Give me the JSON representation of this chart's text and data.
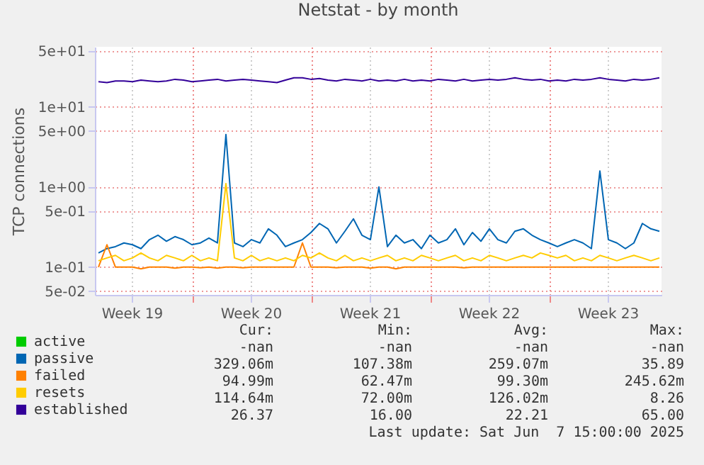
{
  "chart_data": {
    "type": "line",
    "title": "Netstat - by month",
    "ylabel": "TCP connections",
    "log": "y",
    "grid": true,
    "legend": "bottom",
    "line_style": "solid",
    "marker": "none",
    "xlim": [
      "2025-05-05T07:00",
      "2025-06-07T15:00"
    ],
    "xticks": [
      {
        "value": "2025-05-07T11:00",
        "label": "Week 19"
      },
      {
        "value": "2025-05-11T00:00",
        "label": null
      },
      {
        "value": "2025-05-14T11:00",
        "label": "Week 20"
      },
      {
        "value": "2025-05-18T00:00",
        "label": null
      },
      {
        "value": "2025-05-21T11:00",
        "label": "Week 21"
      },
      {
        "value": "2025-05-25T00:00",
        "label": null
      },
      {
        "value": "2025-05-28T11:00",
        "label": "Week 22"
      },
      {
        "value": "2025-06-01T00:00",
        "label": null
      },
      {
        "value": "2025-06-04T11:00",
        "label": "Week 23"
      }
    ],
    "ylim": [
      0.045,
      56
    ],
    "yticks": [
      {
        "value": 0.05,
        "label": "5e-02"
      },
      {
        "value": 0.1,
        "label": "1e-01"
      },
      {
        "value": 0.5,
        "label": "5e-01"
      },
      {
        "value": 1,
        "label": "1e+00"
      },
      {
        "value": 5,
        "label": "5e+00"
      },
      {
        "value": 10,
        "label": "1e+01"
      },
      {
        "value": 50,
        "label": "5e+01"
      }
    ],
    "x": [
      "2025-05-05T12:00",
      "2025-05-06T00:00",
      "2025-05-06T12:00",
      "2025-05-07T00:00",
      "2025-05-07T12:00",
      "2025-05-08T00:00",
      "2025-05-08T12:00",
      "2025-05-09T00:00",
      "2025-05-09T12:00",
      "2025-05-10T00:00",
      "2025-05-10T12:00",
      "2025-05-11T00:00",
      "2025-05-11T12:00",
      "2025-05-12T00:00",
      "2025-05-12T12:00",
      "2025-05-13T00:00",
      "2025-05-13T12:00",
      "2025-05-14T00:00",
      "2025-05-14T12:00",
      "2025-05-15T00:00",
      "2025-05-15T12:00",
      "2025-05-16T00:00",
      "2025-05-16T12:00",
      "2025-05-17T00:00",
      "2025-05-17T12:00",
      "2025-05-18T00:00",
      "2025-05-18T12:00",
      "2025-05-19T00:00",
      "2025-05-19T12:00",
      "2025-05-20T00:00",
      "2025-05-20T12:00",
      "2025-05-21T00:00",
      "2025-05-21T12:00",
      "2025-05-22T00:00",
      "2025-05-22T12:00",
      "2025-05-23T00:00",
      "2025-05-23T12:00",
      "2025-05-24T00:00",
      "2025-05-24T12:00",
      "2025-05-25T00:00",
      "2025-05-25T12:00",
      "2025-05-26T00:00",
      "2025-05-26T12:00",
      "2025-05-27T00:00",
      "2025-05-27T12:00",
      "2025-05-28T00:00",
      "2025-05-28T12:00",
      "2025-05-29T00:00",
      "2025-05-29T12:00",
      "2025-05-30T00:00",
      "2025-05-30T12:00",
      "2025-05-31T00:00",
      "2025-05-31T12:00",
      "2025-06-01T00:00",
      "2025-06-01T12:00",
      "2025-06-02T00:00",
      "2025-06-02T12:00",
      "2025-06-03T00:00",
      "2025-06-03T12:00",
      "2025-06-04T00:00",
      "2025-06-04T12:00",
      "2025-06-05T00:00",
      "2025-06-05T12:00",
      "2025-06-06T00:00",
      "2025-06-06T12:00",
      "2025-06-07T00:00",
      "2025-06-07T12:00"
    ],
    "series": [
      {
        "name": "active",
        "color": "#00cc00",
        "values": [
          null,
          null,
          null,
          null,
          null,
          null,
          null,
          null,
          null,
          null,
          null,
          null,
          null,
          null,
          null,
          null,
          null,
          null,
          null,
          null,
          null,
          null,
          null,
          null,
          null,
          null,
          null,
          null,
          null,
          null,
          null,
          null,
          null,
          null,
          null,
          null,
          null,
          null,
          null,
          null,
          null,
          null,
          null,
          null,
          null,
          null,
          null,
          null,
          null,
          null,
          null,
          null,
          null,
          null,
          null,
          null,
          null,
          null,
          null,
          null,
          null,
          null,
          null,
          null,
          null,
          null,
          null
        ]
      },
      {
        "name": "passive",
        "color": "#0066b3",
        "values": [
          0.15,
          0.17,
          0.18,
          0.2,
          0.19,
          0.17,
          0.22,
          0.25,
          0.21,
          0.24,
          0.22,
          0.19,
          0.2,
          0.23,
          0.2,
          4.5,
          0.2,
          0.18,
          0.22,
          0.2,
          0.3,
          0.25,
          0.18,
          0.2,
          0.22,
          0.27,
          0.35,
          0.3,
          0.2,
          0.28,
          0.4,
          0.25,
          0.22,
          1.0,
          0.18,
          0.25,
          0.2,
          0.22,
          0.17,
          0.25,
          0.2,
          0.22,
          0.3,
          0.19,
          0.27,
          0.21,
          0.3,
          0.22,
          0.2,
          0.28,
          0.3,
          0.25,
          0.22,
          0.2,
          0.18,
          0.2,
          0.22,
          0.2,
          0.17,
          1.58,
          0.22,
          0.2,
          0.17,
          0.2,
          0.35,
          0.3,
          0.28
        ]
      },
      {
        "name": "failed",
        "color": "#ff8000",
        "values": [
          0.1,
          0.19,
          0.1,
          0.1,
          0.1,
          0.095,
          0.1,
          0.1,
          0.1,
          0.097,
          0.1,
          0.1,
          0.098,
          0.1,
          0.097,
          0.1,
          0.1,
          0.098,
          0.1,
          0.1,
          0.1,
          0.1,
          0.1,
          0.1,
          0.2,
          0.1,
          0.1,
          0.1,
          0.098,
          0.1,
          0.1,
          0.1,
          0.097,
          0.1,
          0.1,
          0.095,
          0.1,
          0.1,
          0.1,
          0.1,
          0.1,
          0.1,
          0.1,
          0.098,
          0.1,
          0.1,
          0.1,
          0.1,
          0.1,
          0.1,
          0.1,
          0.1,
          0.1,
          0.1,
          0.1,
          0.1,
          0.1,
          0.1,
          0.1,
          0.1,
          0.1,
          0.1,
          0.1,
          0.1,
          0.1,
          0.1,
          0.1
        ]
      },
      {
        "name": "resets",
        "color": "#ffcc00",
        "values": [
          0.12,
          0.13,
          0.14,
          0.12,
          0.13,
          0.15,
          0.13,
          0.12,
          0.14,
          0.13,
          0.12,
          0.14,
          0.12,
          0.13,
          0.12,
          1.1,
          0.13,
          0.12,
          0.14,
          0.12,
          0.13,
          0.12,
          0.13,
          0.12,
          0.14,
          0.13,
          0.15,
          0.13,
          0.12,
          0.14,
          0.12,
          0.13,
          0.12,
          0.13,
          0.14,
          0.12,
          0.13,
          0.12,
          0.14,
          0.13,
          0.12,
          0.13,
          0.14,
          0.12,
          0.13,
          0.12,
          0.14,
          0.13,
          0.12,
          0.13,
          0.14,
          0.13,
          0.15,
          0.14,
          0.13,
          0.14,
          0.12,
          0.13,
          0.12,
          0.14,
          0.13,
          0.12,
          0.13,
          0.14,
          0.13,
          0.12,
          0.13
        ]
      },
      {
        "name": "established",
        "color": "#330099",
        "values": [
          20.5,
          20,
          21,
          21,
          20.5,
          21.5,
          21,
          20.5,
          21,
          22,
          21.5,
          20.5,
          21,
          21.5,
          22,
          21,
          21.5,
          22,
          21.5,
          21,
          20.5,
          20,
          21.5,
          23,
          23,
          22,
          22.5,
          21.5,
          21,
          22,
          21.5,
          21,
          22,
          21,
          21.5,
          21,
          22,
          21,
          21.5,
          21,
          22,
          21.5,
          21,
          22,
          21,
          21.5,
          22,
          21.5,
          22,
          23,
          22,
          21.5,
          22,
          21,
          21.5,
          21,
          22,
          21.5,
          22,
          23,
          22,
          21.5,
          21,
          22,
          21.5,
          22,
          23
        ]
      }
    ],
    "annotations": [
      "Cur:",
      "Min:",
      "Avg:",
      "Max:",
      "-nan",
      "-nan",
      "-nan",
      "-nan",
      "329.06m",
      "107.38m",
      "259.07m",
      "35.89",
      "94.99m",
      "62.47m",
      "99.30m",
      "245.62m",
      "114.64m",
      "72.00m",
      "126.02m",
      "8.26",
      "26.37",
      "16.00",
      "22.21",
      "65.00",
      "Last update: Sat Jun  7 15:00:00 2025"
    ]
  }
}
